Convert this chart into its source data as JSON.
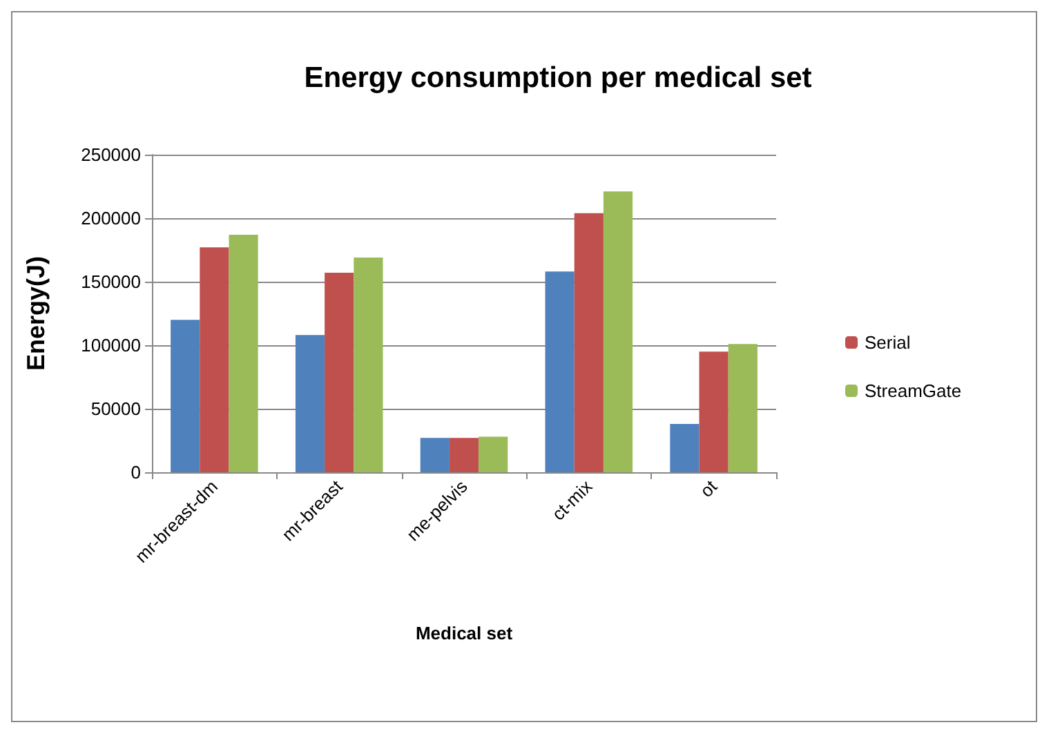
{
  "chart_data": {
    "type": "bar",
    "title": "Energy consumption per medical set",
    "xlabel": "Medical set",
    "ylabel": "Energy(J)",
    "categories": [
      "mr-breast-dm",
      "mr-breast",
      "me-pelvis",
      "ct-mix",
      "ot"
    ],
    "series": [
      {
        "color": "#4f81bd",
        "values": [
          120000,
          108000,
          27000,
          158000,
          38000
        ]
      },
      {
        "name": "Serial",
        "color": "#c0504d",
        "values": [
          177000,
          157000,
          27000,
          204000,
          95000
        ]
      },
      {
        "name": "StreamGate",
        "color": "#9bbb59",
        "values": [
          187000,
          169000,
          28000,
          221000,
          101000
        ]
      }
    ],
    "ylim": [
      0,
      250000
    ],
    "yticks": [
      0,
      50000,
      100000,
      150000,
      200000,
      250000
    ],
    "grid": "y",
    "legend": "right"
  }
}
